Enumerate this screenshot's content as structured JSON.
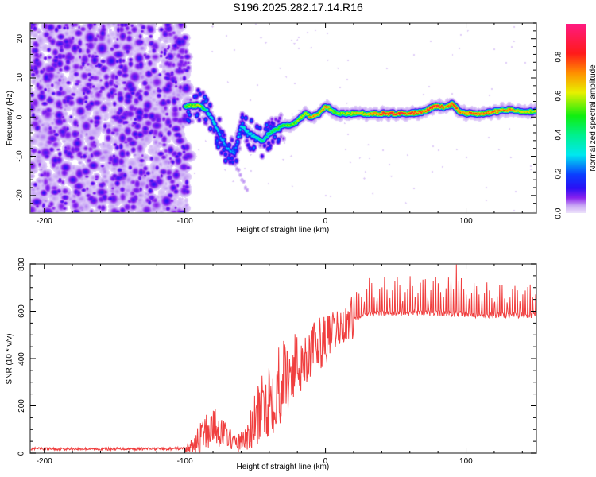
{
  "title": "S196.2025.282.17.14.R16",
  "chart_data": [
    {
      "type": "heatmap",
      "name": "spectrogram",
      "xlabel": "Height of straight line (km)",
      "ylabel": "Frequency (Hz)",
      "xlim": [
        -210,
        150
      ],
      "ylim": [
        -24.5,
        24
      ],
      "xticks": [
        -200,
        -100,
        0,
        100
      ],
      "xtick_labels": [
        "-200",
        "-100",
        "0",
        "100"
      ],
      "yticks": [
        -20,
        -10,
        0,
        10,
        20
      ],
      "ytick_labels": [
        "-20",
        "-10",
        "0",
        "10",
        "20"
      ],
      "noise_region_x": [
        -210,
        -100
      ],
      "ridge_track": {
        "x": [
          -100,
          -95,
          -90,
          -85,
          -80,
          -75,
          -70,
          -65,
          -60,
          -55,
          -50,
          -45,
          -40,
          -35,
          -30,
          -25,
          -20,
          -15,
          -10,
          -5,
          0,
          5,
          10,
          20,
          30,
          40,
          50,
          60,
          70,
          75,
          80,
          85,
          90,
          95,
          100,
          110,
          120,
          130,
          140,
          150
        ],
        "freq": [
          3,
          3,
          3,
          2,
          -1,
          -5,
          -8,
          -9,
          -2,
          -4,
          -5,
          -6,
          -4,
          -3,
          -2,
          -2,
          -1,
          1,
          0,
          1,
          3,
          1.5,
          1,
          1,
          1,
          1,
          1,
          1,
          1.5,
          2.5,
          3,
          2.5,
          3.5,
          1.5,
          1,
          1,
          1.5,
          2,
          1.5,
          1.5
        ],
        "amplitude": [
          0.55,
          0.65,
          0.7,
          0.4,
          0.35,
          0.3,
          0.3,
          0.25,
          0.35,
          0.35,
          0.4,
          0.45,
          0.5,
          0.55,
          0.55,
          0.6,
          0.65,
          0.7,
          0.8,
          0.75,
          0.85,
          0.6,
          0.6,
          0.7,
          0.75,
          0.9,
          0.9,
          0.9,
          0.85,
          0.9,
          0.95,
          0.75,
          0.9,
          0.8,
          0.8,
          0.85,
          0.8,
          0.8,
          0.7,
          0.65
        ]
      },
      "secondary_branch": {
        "x": [
          -80,
          -75,
          -70,
          -65,
          -60,
          -55
        ],
        "freq": [
          -3,
          -6,
          -9,
          -12,
          -15,
          -19
        ],
        "amplitude": [
          0.12,
          0.1,
          0.08,
          0.06,
          0.05,
          0.05
        ]
      },
      "colorbar": {
        "label": "Normalized spectral amplitude",
        "range": [
          0.0,
          0.97
        ],
        "ticks": [
          0.0,
          0.2,
          0.4,
          0.6,
          0.8
        ],
        "tick_labels": [
          "0.0",
          "0.2",
          "0.4",
          "0.6",
          "0.8"
        ],
        "colormap": [
          {
            "v": 0.0,
            "color": "#efe6fb"
          },
          {
            "v": 0.04,
            "color": "#c9a8f5"
          },
          {
            "v": 0.08,
            "color": "#8a22ee"
          },
          {
            "v": 0.13,
            "color": "#2a10f5"
          },
          {
            "v": 0.2,
            "color": "#0a40ff"
          },
          {
            "v": 0.3,
            "color": "#00e8f0"
          },
          {
            "v": 0.4,
            "color": "#00f090"
          },
          {
            "v": 0.5,
            "color": "#10ee10"
          },
          {
            "v": 0.62,
            "color": "#e8f000"
          },
          {
            "v": 0.72,
            "color": "#ff9000"
          },
          {
            "v": 0.82,
            "color": "#ff1a1a"
          },
          {
            "v": 0.97,
            "color": "#ff1a80"
          }
        ]
      }
    },
    {
      "type": "line",
      "name": "snr",
      "xlabel": "Height of straight line (km)",
      "ylabel": "SNR (10 * v/v)",
      "xlim": [
        -210,
        150
      ],
      "ylim": [
        0,
        800
      ],
      "xticks": [
        -200,
        -100,
        0,
        100
      ],
      "xtick_labels": [
        "-200",
        "-100",
        "0",
        "100"
      ],
      "yticks": [
        0,
        200,
        400,
        600,
        800
      ],
      "ytick_labels": [
        "0",
        "200",
        "400",
        "600",
        "800"
      ],
      "color": "#ee2a2a",
      "envelope": {
        "x": [
          -210,
          -150,
          -110,
          -100,
          -95,
          -90,
          -85,
          -80,
          -75,
          -70,
          -65,
          -60,
          -55,
          -50,
          -45,
          -40,
          -35,
          -30,
          -25,
          -20,
          -15,
          -10,
          -5,
          0,
          5,
          10,
          15,
          20,
          25,
          30,
          40,
          50,
          60,
          70,
          80,
          90,
          100,
          110,
          120,
          130,
          140,
          150
        ],
        "base": [
          15,
          15,
          15,
          18,
          25,
          50,
          80,
          110,
          90,
          70,
          40,
          40,
          60,
          120,
          180,
          220,
          260,
          300,
          330,
          360,
          390,
          420,
          450,
          470,
          490,
          520,
          540,
          570,
          590,
          595,
          600,
          600,
          600,
          600,
          600,
          595,
          595,
          590,
          590,
          590,
          590,
          590
        ],
        "spike": [
          15,
          15,
          15,
          20,
          40,
          80,
          110,
          100,
          90,
          60,
          40,
          60,
          100,
          150,
          170,
          220,
          230,
          220,
          200,
          180,
          160,
          140,
          140,
          130,
          120,
          100,
          100,
          120,
          140,
          140,
          140,
          140,
          150,
          150,
          150,
          160,
          140,
          140,
          140,
          130,
          130,
          130
        ]
      },
      "notable_peak": {
        "x": 93,
        "y": 800
      }
    }
  ]
}
